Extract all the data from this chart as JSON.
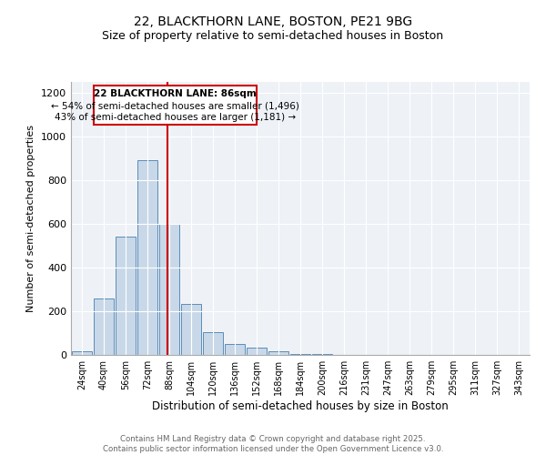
{
  "title1": "22, BLACKTHORN LANE, BOSTON, PE21 9BG",
  "title2": "Size of property relative to semi-detached houses in Boston",
  "xlabel": "Distribution of semi-detached houses by size in Boston",
  "ylabel": "Number of semi-detached properties",
  "categories": [
    "24sqm",
    "40sqm",
    "56sqm",
    "72sqm",
    "88sqm",
    "104sqm",
    "120sqm",
    "136sqm",
    "152sqm",
    "168sqm",
    "184sqm",
    "200sqm",
    "216sqm",
    "231sqm",
    "247sqm",
    "263sqm",
    "279sqm",
    "295sqm",
    "311sqm",
    "327sqm",
    "343sqm"
  ],
  "values": [
    15,
    260,
    540,
    890,
    600,
    235,
    105,
    50,
    32,
    18,
    5,
    5,
    2,
    1,
    1,
    1,
    0,
    0,
    0,
    0,
    0
  ],
  "bar_color": "#c8d8e8",
  "bar_edge_color": "#5b8db8",
  "property_line_color": "#cc0000",
  "annotation_title": "22 BLACKTHORN LANE: 86sqm",
  "annotation_line1": "← 54% of semi-detached houses are smaller (1,496)",
  "annotation_line2": "43% of semi-detached houses are larger (1,181) →",
  "annotation_box_color": "#cc0000",
  "ylim": [
    0,
    1250
  ],
  "yticks": [
    0,
    200,
    400,
    600,
    800,
    1000,
    1200
  ],
  "footer1": "Contains HM Land Registry data © Crown copyright and database right 2025.",
  "footer2": "Contains public sector information licensed under the Open Government Licence v3.0.",
  "bg_color": "#eef2f7",
  "title1_fontsize": 10,
  "title2_fontsize": 9,
  "xlabel_fontsize": 8.5,
  "ylabel_fontsize": 8
}
